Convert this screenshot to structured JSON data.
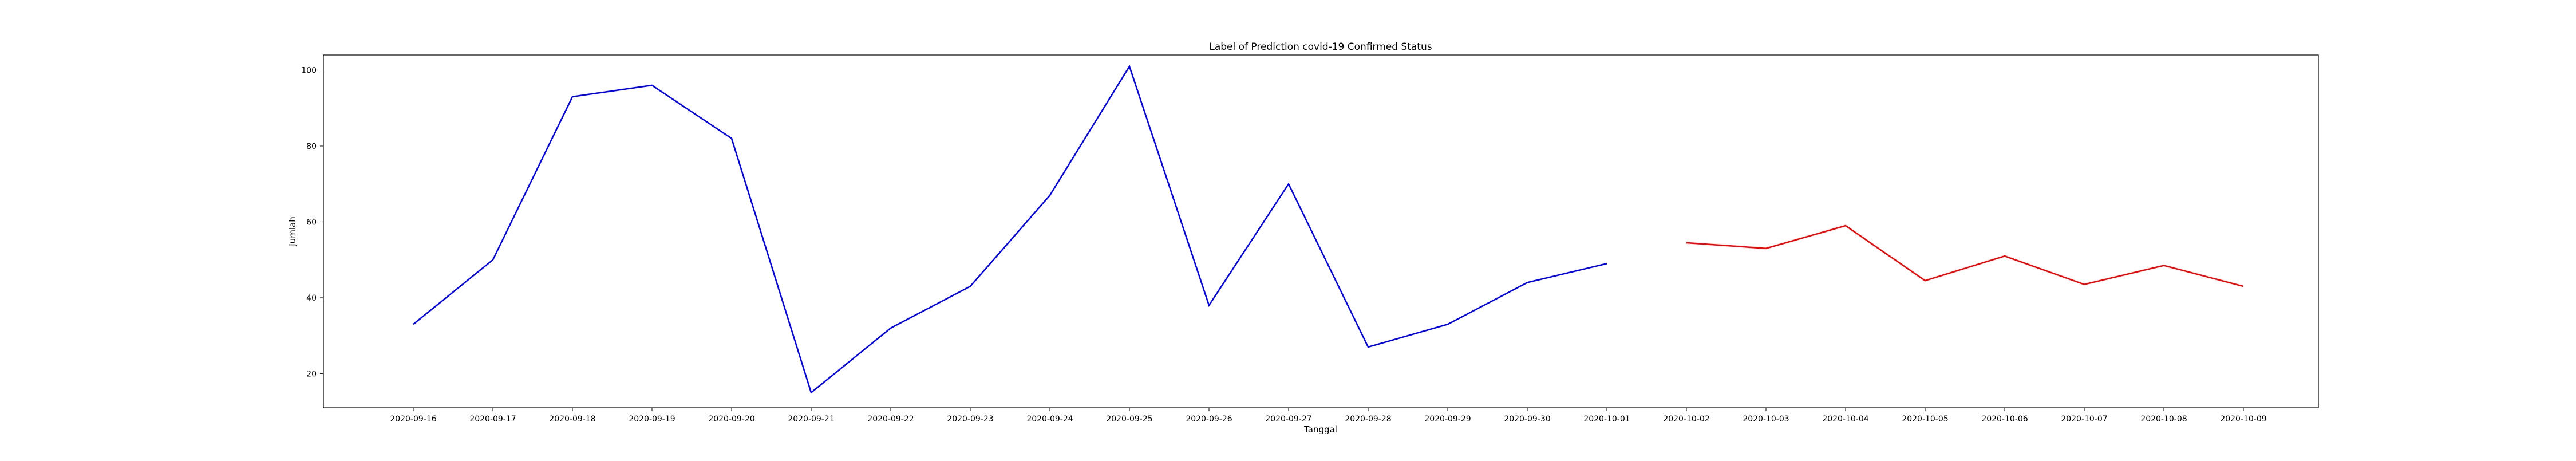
{
  "chart_data": {
    "type": "line",
    "title": "Label of Prediction covid-19 Confirmed Status",
    "xlabel": "Tanggal",
    "ylabel": "Jumlah",
    "categories": [
      "2020-09-16",
      "2020-09-17",
      "2020-09-18",
      "2020-09-19",
      "2020-09-20",
      "2020-09-21",
      "2020-09-22",
      "2020-09-23",
      "2020-09-24",
      "2020-09-25",
      "2020-09-26",
      "2020-09-27",
      "2020-09-28",
      "2020-09-29",
      "2020-09-30",
      "2020-10-01",
      "2020-10-02",
      "2020-10-03",
      "2020-10-04",
      "2020-10-05",
      "2020-10-06",
      "2020-10-07",
      "2020-10-08",
      "2020-10-09"
    ],
    "yticks": [
      20,
      40,
      60,
      80,
      100
    ],
    "ylim": [
      11,
      104
    ],
    "grid": false,
    "series": [
      {
        "color": "#0000ff",
        "x": [
          "2020-09-16",
          "2020-09-17",
          "2020-09-18",
          "2020-09-19",
          "2020-09-20",
          "2020-09-21",
          "2020-09-22",
          "2020-09-23",
          "2020-09-24",
          "2020-09-25",
          "2020-09-26",
          "2020-09-27",
          "2020-09-28",
          "2020-09-29",
          "2020-09-30",
          "2020-10-01"
        ],
        "values": [
          33,
          50,
          93,
          96,
          82,
          15,
          32,
          43,
          67,
          101,
          38,
          70,
          27,
          33,
          44,
          49
        ]
      },
      {
        "color": "#ff0000",
        "x": [
          "2020-10-02",
          "2020-10-03",
          "2020-10-04",
          "2020-10-05",
          "2020-10-06",
          "2020-10-07",
          "2020-10-08",
          "2020-10-09"
        ],
        "values": [
          54.5,
          53,
          59,
          44.5,
          51,
          43.5,
          48.5,
          43
        ]
      }
    ]
  }
}
